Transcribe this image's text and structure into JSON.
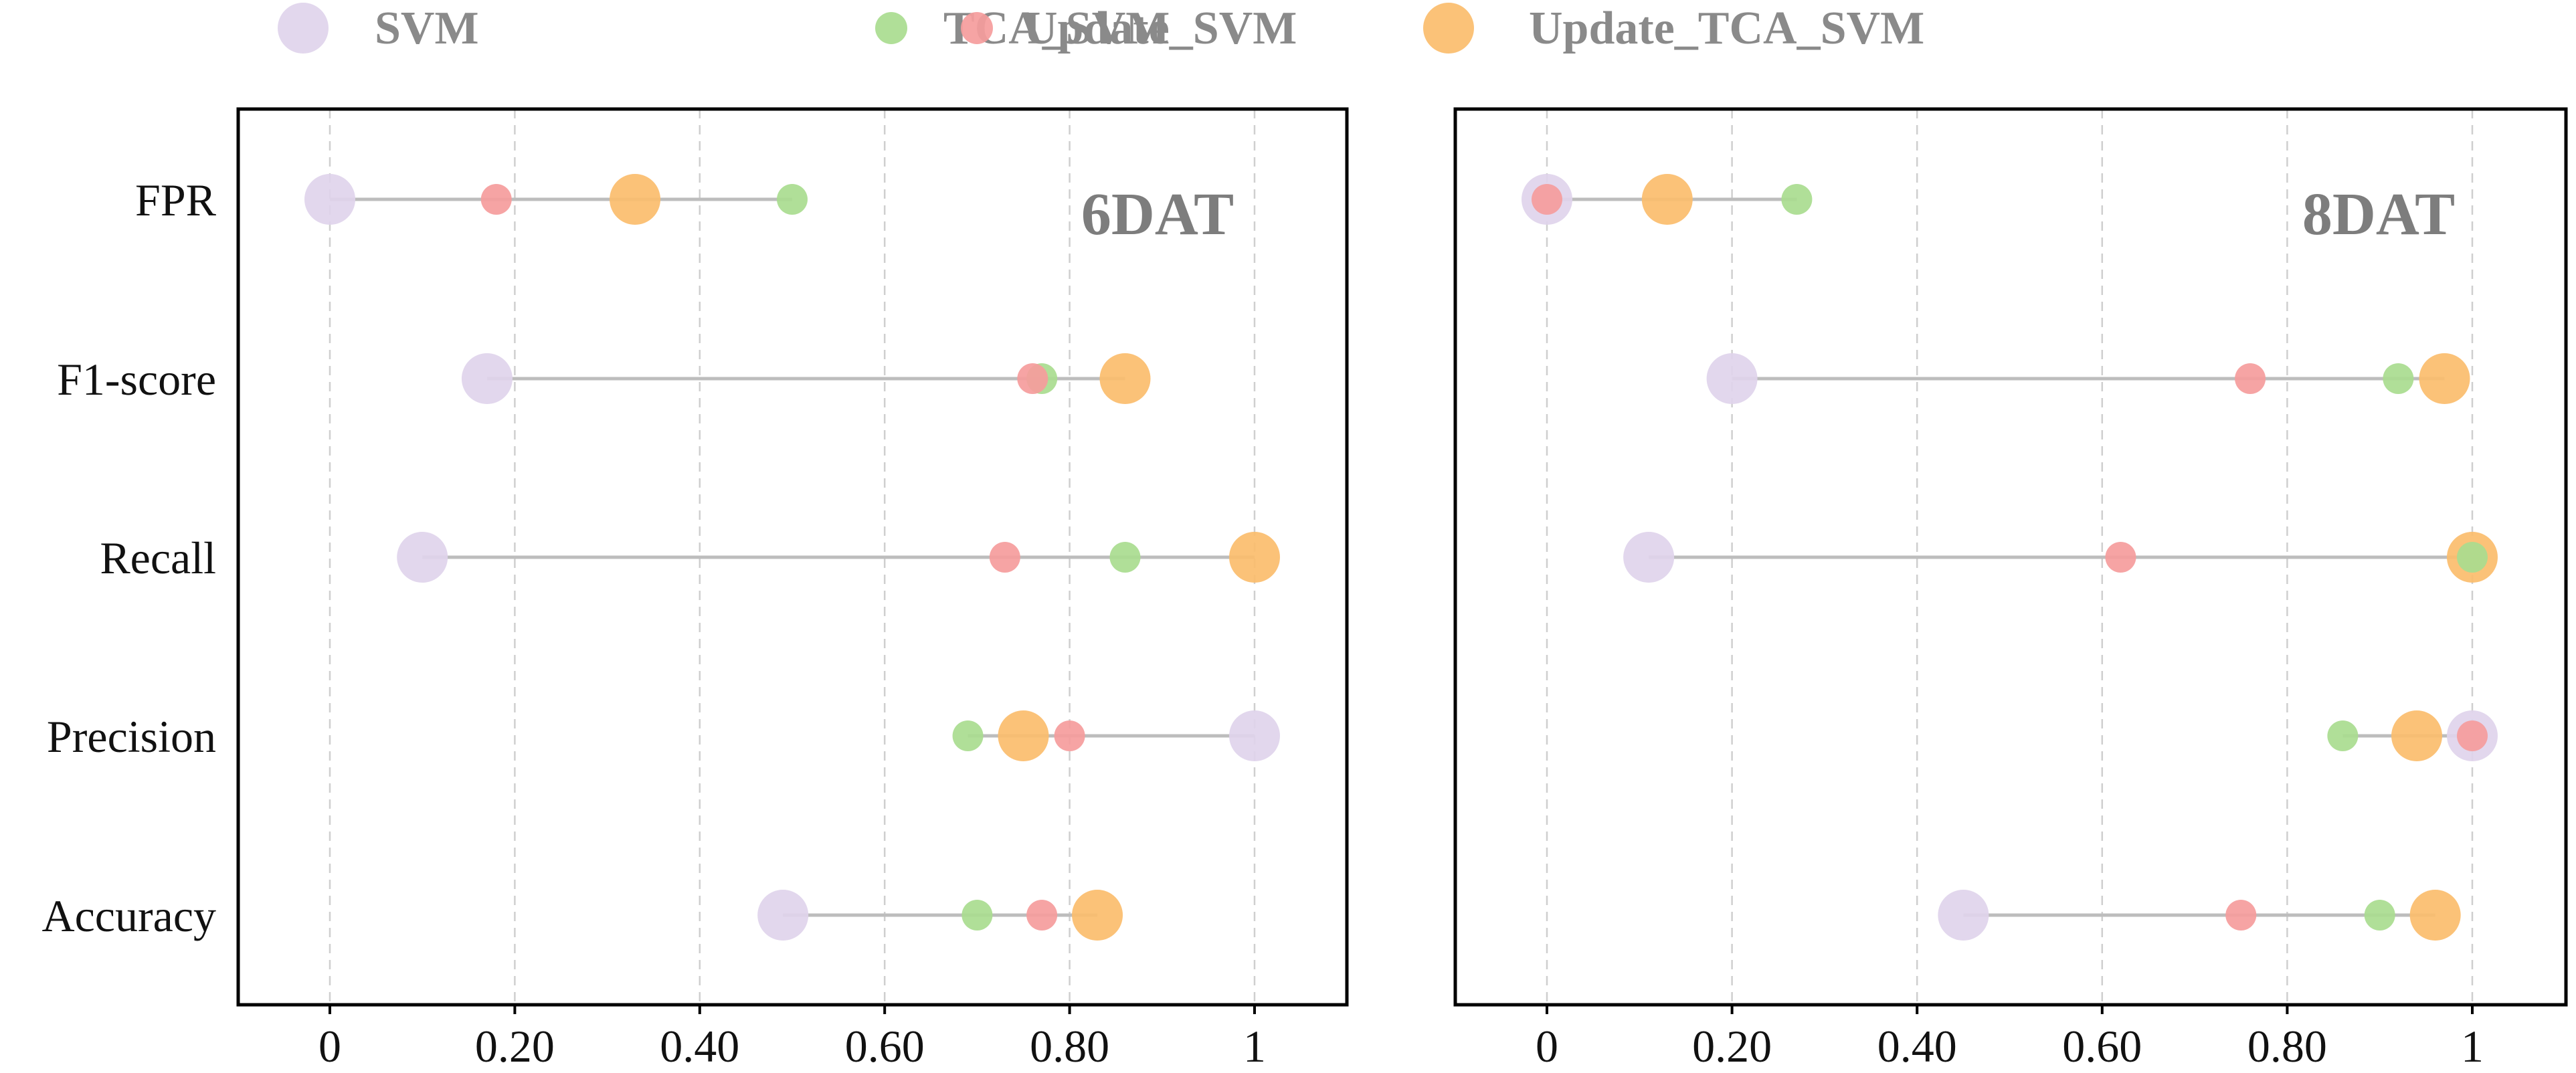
{
  "chart_data": {
    "type": "dot-plot",
    "categories": [
      "FPR",
      "F1-score",
      "Recall",
      "Precision",
      "Accuracy"
    ],
    "xticks": [
      0,
      0.2,
      0.4,
      0.6,
      0.8,
      1
    ],
    "xtick_labels": [
      "0",
      "0.20",
      "0.40",
      "0.60",
      "0.80",
      "1"
    ],
    "xlim": [
      -0.1,
      1.1
    ],
    "grid": "vertical dashed",
    "legend": [
      {
        "name": "SVM",
        "color": "#e0d4ec",
        "marker": "large"
      },
      {
        "name": "TCA_SVM",
        "color": "#a9dc8f",
        "marker": "small"
      },
      {
        "name": "Update_SVM",
        "color": "#f59c9c",
        "marker": "small"
      },
      {
        "name": "Update_TCA_SVM",
        "color": "#fbbd6d",
        "marker": "large"
      }
    ],
    "legend_position": "top",
    "panels": [
      {
        "label": "6DAT",
        "series": [
          {
            "name": "SVM",
            "values": [
              0.0,
              0.17,
              0.1,
              1.0,
              0.49
            ]
          },
          {
            "name": "TCA_SVM",
            "values": [
              0.5,
              0.77,
              0.86,
              0.69,
              0.7
            ]
          },
          {
            "name": "Update_SVM",
            "values": [
              0.18,
              0.76,
              0.73,
              0.8,
              0.77
            ]
          },
          {
            "name": "Update_TCA_SVM",
            "values": [
              0.33,
              0.86,
              1.0,
              0.75,
              0.83
            ]
          }
        ]
      },
      {
        "label": "8DAT",
        "series": [
          {
            "name": "SVM",
            "values": [
              0.0,
              0.2,
              0.11,
              1.0,
              0.45
            ]
          },
          {
            "name": "TCA_SVM",
            "values": [
              0.27,
              0.92,
              1.0,
              0.86,
              0.9
            ]
          },
          {
            "name": "Update_SVM",
            "values": [
              0.0,
              0.76,
              0.62,
              1.0,
              0.75
            ]
          },
          {
            "name": "Update_TCA_SVM",
            "values": [
              0.13,
              0.97,
              1.0,
              0.94,
              0.96
            ]
          }
        ]
      }
    ]
  }
}
